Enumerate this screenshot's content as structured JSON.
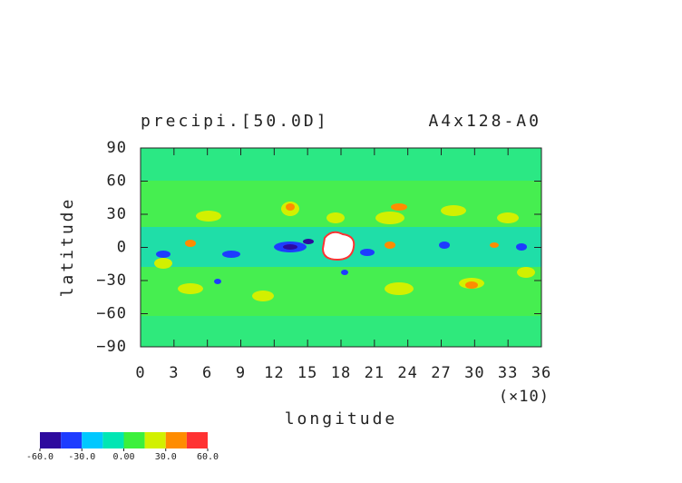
{
  "chart_data": {
    "type": "contour",
    "title": "precipi.[50.0D]",
    "subtitle": "A4x128-A0",
    "x_label": "longitude",
    "x_multiplier": "(×10)",
    "y_label": "latitude",
    "xlim": [
      0,
      36
    ],
    "ylim": [
      -90,
      90
    ],
    "xticks": [
      0,
      3,
      6,
      9,
      12,
      15,
      18,
      21,
      24,
      27,
      30,
      33,
      36
    ],
    "yticks": [
      90,
      60,
      30,
      0,
      {
        "value": -30,
        "label": "−30"
      },
      {
        "value": -60,
        "label": "−60"
      },
      {
        "value": -90,
        "label": "−90"
      }
    ],
    "colorbar": {
      "clim": [
        -60,
        60
      ],
      "colors": [
        "#2d0a9e",
        "#1e3cff",
        "#00c8ff",
        "#00e6b4",
        "#3cf03c",
        "#d2f000",
        "#ff8c00",
        "#ff3232"
      ],
      "ticks": [
        {
          "value": -60,
          "label": "-60.0"
        },
        {
          "value": -30,
          "label": "-30.0"
        },
        {
          "value": 0,
          "label": "0.00"
        },
        {
          "value": 30,
          "label": "30.0"
        },
        {
          "value": 60,
          "label": "60.0"
        }
      ]
    }
  }
}
